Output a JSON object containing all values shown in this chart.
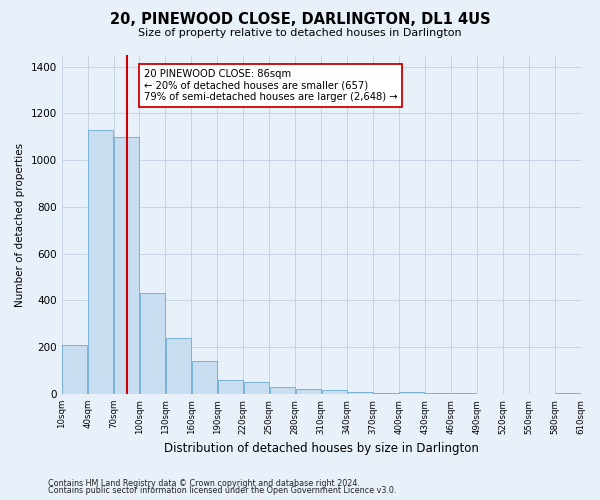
{
  "title": "20, PINEWOOD CLOSE, DARLINGTON, DL1 4US",
  "subtitle": "Size of property relative to detached houses in Darlington",
  "xlabel": "Distribution of detached houses by size in Darlington",
  "ylabel": "Number of detached properties",
  "bar_color": "#c8ddf0",
  "bar_edge_color": "#6aaad4",
  "property_size": 86,
  "vline_color": "#cc0000",
  "annotation_line1": "20 PINEWOOD CLOSE: 86sqm",
  "annotation_line2": "← 20% of detached houses are smaller (657)",
  "annotation_line3": "79% of semi-detached houses are larger (2,648) →",
  "annotation_box_color": "#ffffff",
  "annotation_box_edge": "#cc0000",
  "bins": [
    10,
    40,
    70,
    100,
    130,
    160,
    190,
    220,
    250,
    280,
    310,
    340,
    370,
    400,
    430,
    460,
    490,
    520,
    550,
    580,
    610
  ],
  "bar_heights": [
    210,
    1130,
    1100,
    430,
    240,
    140,
    60,
    50,
    30,
    20,
    15,
    10,
    5,
    8,
    5,
    5,
    0,
    0,
    0,
    5
  ],
  "ylim": [
    0,
    1450
  ],
  "yticks": [
    0,
    200,
    400,
    600,
    800,
    1000,
    1200,
    1400
  ],
  "footnote1": "Contains HM Land Registry data © Crown copyright and database right 2024.",
  "footnote2": "Contains public sector information licensed under the Open Government Licence v3.0.",
  "background_color": "#e8f0fa",
  "grid_color": "#c0cfe0"
}
